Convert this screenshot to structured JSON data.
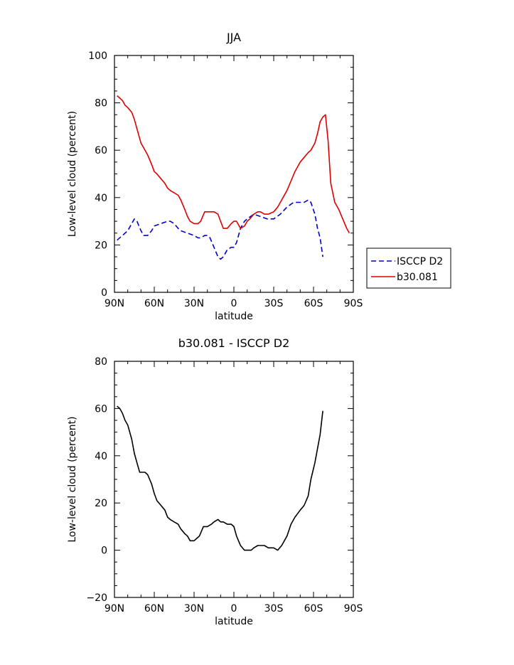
{
  "chart_data": [
    {
      "type": "line",
      "title": "JJA",
      "xlabel": "latitude",
      "ylabel": "Low-level cloud (percent)",
      "xlim": [
        90,
        -90
      ],
      "ylim": [
        0,
        100
      ],
      "xticks": [
        {
          "value": 90,
          "label": "90N"
        },
        {
          "value": 60,
          "label": "60N"
        },
        {
          "value": 30,
          "label": "30N"
        },
        {
          "value": 0,
          "label": "0"
        },
        {
          "value": -30,
          "label": "30S"
        },
        {
          "value": -60,
          "label": "60S"
        },
        {
          "value": -90,
          "label": "90S"
        }
      ],
      "yticks": [
        0,
        20,
        40,
        60,
        80,
        100
      ],
      "legend_position": "right",
      "series": [
        {
          "name": "ISCCP D2",
          "color": "#0000cc",
          "dash": "dashed",
          "x": [
            88,
            84,
            80,
            77,
            75,
            73,
            70,
            68,
            65,
            62,
            60,
            55,
            50,
            48,
            45,
            42,
            40,
            35,
            30,
            27,
            25,
            22,
            20,
            18,
            15,
            12,
            10,
            8,
            5,
            2,
            0,
            -2,
            -5,
            -8,
            -10,
            -15,
            -20,
            -25,
            -30,
            -35,
            -40,
            -45,
            -48,
            -50,
            -53,
            -56,
            -58,
            -61,
            -63,
            -65,
            -67
          ],
          "y": [
            22,
            24,
            26,
            29,
            31,
            30,
            26,
            24,
            24,
            26,
            28,
            29,
            30,
            30,
            29,
            27,
            26,
            25,
            24,
            23,
            23,
            24,
            24,
            23,
            19,
            15,
            14,
            15,
            18,
            19,
            19,
            21,
            27,
            30,
            31,
            33,
            32,
            31,
            31,
            33,
            36,
            38,
            38,
            38,
            38,
            39,
            38,
            33,
            27,
            23,
            15
          ]
        },
        {
          "name": "b30.081",
          "color": "#dd0000",
          "dash": "solid",
          "x": [
            88,
            86,
            84,
            82,
            80,
            77,
            75,
            73,
            70,
            68,
            65,
            62,
            60,
            58,
            55,
            52,
            50,
            48,
            45,
            42,
            40,
            37,
            35,
            33,
            30,
            27,
            25,
            22,
            20,
            18,
            15,
            12,
            10,
            8,
            5,
            2,
            0,
            -2,
            -5,
            -8,
            -10,
            -12,
            -15,
            -18,
            -20,
            -23,
            -26,
            -30,
            -33,
            -36,
            -40,
            -43,
            -46,
            -50,
            -53,
            -56,
            -58,
            -61,
            -63,
            -65,
            -67,
            -69,
            -71,
            -73,
            -76,
            -79,
            -82,
            -85,
            -87
          ],
          "y": [
            83,
            82,
            81,
            79,
            78,
            76,
            73,
            69,
            63,
            61,
            58,
            54,
            51,
            50,
            48,
            46,
            44,
            43,
            42,
            41,
            39,
            35,
            32,
            30,
            29,
            29,
            30,
            34,
            34,
            34,
            34,
            33,
            30,
            27,
            27,
            29,
            30,
            30,
            27,
            28,
            30,
            31,
            33,
            34,
            34,
            33,
            33,
            34,
            36,
            39,
            43,
            47,
            51,
            55,
            57,
            59,
            60,
            63,
            67,
            72,
            74,
            75,
            64,
            46,
            38,
            35,
            31,
            27,
            25
          ]
        }
      ]
    },
    {
      "type": "line",
      "title": "b30.081 - ISCCP D2",
      "xlabel": "latitude",
      "ylabel": "Low-level cloud (percent)",
      "xlim": [
        90,
        -90
      ],
      "ylim": [
        -20,
        80
      ],
      "xticks": [
        {
          "value": 90,
          "label": "90N"
        },
        {
          "value": 60,
          "label": "60N"
        },
        {
          "value": 30,
          "label": "30N"
        },
        {
          "value": 0,
          "label": "0"
        },
        {
          "value": -30,
          "label": "30S"
        },
        {
          "value": -60,
          "label": "60S"
        },
        {
          "value": -90,
          "label": "90S"
        }
      ],
      "yticks": [
        -20,
        0,
        20,
        40,
        60,
        80
      ],
      "series": [
        {
          "color": "#000000",
          "dash": "solid",
          "x": [
            88,
            86,
            84,
            82,
            80,
            77,
            75,
            73,
            71,
            69,
            67,
            65,
            62,
            60,
            58,
            55,
            52,
            50,
            48,
            45,
            42,
            40,
            37,
            35,
            33,
            30,
            28,
            26,
            23,
            20,
            17,
            15,
            12,
            10,
            8,
            5,
            2,
            0,
            -2,
            -5,
            -8,
            -10,
            -13,
            -15,
            -18,
            -20,
            -23,
            -26,
            -28,
            -30,
            -33,
            -36,
            -40,
            -43,
            -46,
            -50,
            -53,
            -56,
            -58,
            -61,
            -63,
            -65,
            -67
          ],
          "y": [
            61,
            60,
            58,
            55,
            53,
            47,
            41,
            37,
            33,
            33,
            33,
            32,
            28,
            24,
            21,
            19,
            17,
            14,
            13,
            12,
            11,
            9,
            7,
            6,
            4,
            4,
            5,
            6,
            10,
            10,
            11,
            12,
            13,
            12,
            12,
            11,
            11,
            10,
            6,
            2,
            0,
            0,
            0,
            1,
            2,
            2,
            2,
            1,
            1,
            1,
            0,
            2,
            6,
            11,
            14,
            17,
            19,
            23,
            30,
            37,
            43,
            49,
            59
          ]
        }
      ]
    }
  ]
}
